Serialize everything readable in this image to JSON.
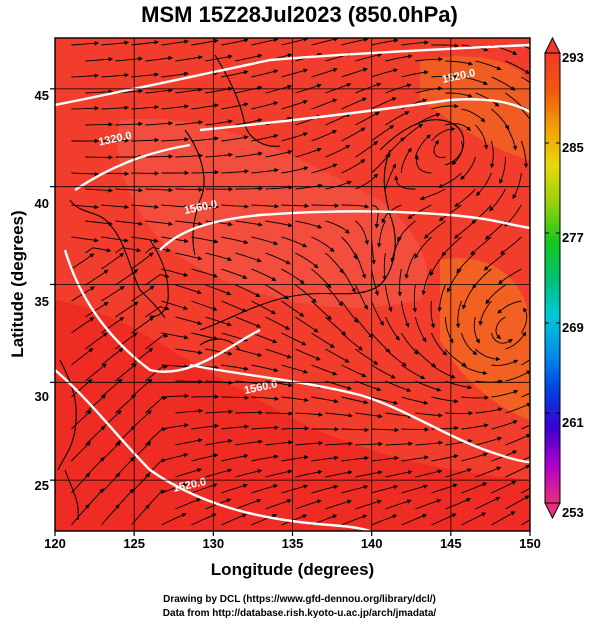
{
  "title": "MSM 15Z28Jul2023 (850.0hPa)",
  "axes": {
    "xlabel": "Longitude (degrees)",
    "ylabel": "Latitude  (degrees)",
    "xticks": [
      "120",
      "125",
      "130",
      "135",
      "140",
      "145",
      "150"
    ],
    "yticks": [
      "25",
      "30",
      "35",
      "40",
      "45"
    ],
    "xlim": [
      120,
      150
    ],
    "ylim": [
      22.4,
      47.6
    ]
  },
  "colorbar": {
    "labels": [
      "293",
      "285",
      "277",
      "269",
      "261",
      "253"
    ],
    "range": [
      253,
      293
    ],
    "colors": [
      "#e8307a",
      "#b000c8",
      "#3a00d0",
      "#0040e0",
      "#0090e8",
      "#00c8d8",
      "#00c070",
      "#18c818",
      "#98d010",
      "#e8d808",
      "#f0a008",
      "#f05810",
      "#f03a28"
    ]
  },
  "contour_labels": [
    {
      "text": "1320.0",
      "lon": 122.8,
      "lat": 42.1
    },
    {
      "text": "1560.0",
      "lon": 128.2,
      "lat": 38.6
    },
    {
      "text": "1520.0",
      "lon": 144.5,
      "lat": 45.3
    },
    {
      "text": "1560.0",
      "lon": 132.0,
      "lat": 29.4
    },
    {
      "text": "1520.0",
      "lon": 127.5,
      "lat": 24.4
    }
  ],
  "credits": [
    "Drawing by DCL (https://www.gfd-dennou.org/library/dcl/)",
    "Data from http://database.rish.kyoto-u.ac.jp/arch/jmadata/"
  ]
}
